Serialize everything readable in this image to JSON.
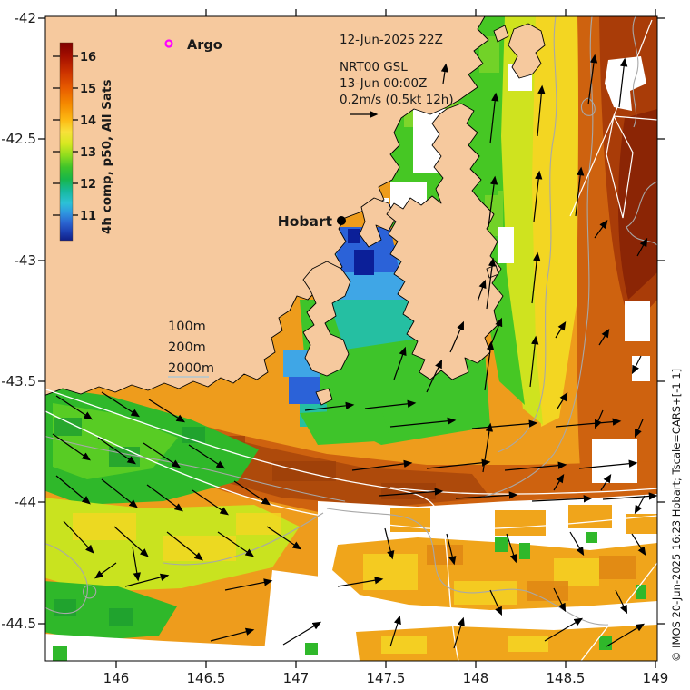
{
  "axes": {
    "x_ticks": [
      "146",
      "146.5",
      "147",
      "147.5",
      "148",
      "148.5",
      "149"
    ],
    "y_ticks": [
      "-42",
      "-42.5",
      "-43",
      "-43.5",
      "-44",
      "-44.5"
    ]
  },
  "colorbar": {
    "title": "4h comp, p50, All Sats",
    "ticks": [
      "16",
      "15",
      "14",
      "13",
      "12",
      "11"
    ]
  },
  "legend": {
    "argo_label": "Argo",
    "isobaths": [
      "100m",
      "200m",
      "2000m"
    ]
  },
  "annotations": {
    "sst_timestamp": "12-Jun-2025 22Z",
    "velocity_product": "NRT00 GSL",
    "velocity_timestamp": "13-Jun 00:00Z",
    "velocity_scale": "0.2m/s (0.5kt 12h)"
  },
  "place": {
    "hobart_label": "Hobart"
  },
  "watermark": "© IMOS 20-Jun-2025 16:23 Hobart; Tscale=CARS+[-1 1]",
  "colors": {
    "land": "#f6c99e",
    "ocean_warm": "#ee9c1c",
    "ocean_hot": "#8b2505",
    "ocean_green": "#2fb82a",
    "ocean_cold_navy": "#0b1f98",
    "no_data": "#ffffff",
    "arrow": "#000000",
    "isobath_shallow": "#ffffff",
    "isobath_deep": "#a8a8a8",
    "argo_marker": "#ff00ff"
  },
  "arrows": [
    [
      62,
      436,
      100,
      461
    ],
    [
      112,
      432,
      152,
      458
    ],
    [
      164,
      440,
      202,
      464
    ],
    [
      58,
      478,
      98,
      506
    ],
    [
      108,
      482,
      148,
      510
    ],
    [
      158,
      488,
      197,
      514
    ],
    [
      208,
      490,
      246,
      515
    ],
    [
      62,
      524,
      98,
      554
    ],
    [
      112,
      528,
      150,
      558
    ],
    [
      162,
      534,
      200,
      562
    ],
    [
      212,
      540,
      250,
      566
    ],
    [
      258,
      530,
      296,
      555
    ],
    [
      70,
      574,
      102,
      608
    ],
    [
      126,
      580,
      162,
      612
    ],
    [
      184,
      586,
      222,
      616
    ],
    [
      240,
      586,
      278,
      612
    ],
    [
      294,
      580,
      330,
      604
    ],
    [
      128,
      620,
      106,
      636
    ],
    [
      146,
      602,
      152,
      638
    ],
    [
      336,
      452,
      388,
      446
    ],
    [
      402,
      450,
      456,
      444
    ],
    [
      430,
      470,
      500,
      463
    ],
    [
      520,
      472,
      590,
      466
    ],
    [
      612,
      470,
      682,
      464
    ],
    [
      388,
      518,
      452,
      510
    ],
    [
      470,
      516,
      538,
      509
    ],
    [
      556,
      518,
      622,
      512
    ],
    [
      638,
      516,
      700,
      510
    ],
    [
      418,
      546,
      486,
      541
    ],
    [
      502,
      549,
      568,
      545
    ],
    [
      586,
      552,
      650,
      549
    ],
    [
      664,
      550,
      722,
      546
    ],
    [
      540,
      158,
      546,
      104
    ],
    [
      592,
      150,
      597,
      96
    ],
    [
      538,
      250,
      545,
      196
    ],
    [
      588,
      244,
      594,
      190
    ],
    [
      634,
      238,
      640,
      186
    ],
    [
      536,
      340,
      543,
      286
    ],
    [
      586,
      334,
      592,
      280
    ],
    [
      534,
      430,
      541,
      378
    ],
    [
      584,
      426,
      590,
      372
    ],
    [
      532,
      520,
      540,
      468
    ],
    [
      648,
      115,
      655,
      62
    ],
    [
      682,
      118,
      688,
      66
    ],
    [
      655,
      262,
      668,
      244
    ],
    [
      702,
      282,
      712,
      264
    ],
    [
      612,
      372,
      622,
      356
    ],
    [
      660,
      380,
      670,
      364
    ],
    [
      706,
      392,
      697,
      410
    ],
    [
      614,
      450,
      624,
      434
    ],
    [
      664,
      452,
      656,
      470
    ],
    [
      708,
      462,
      700,
      480
    ],
    [
      610,
      540,
      620,
      524
    ],
    [
      662,
      540,
      672,
      524
    ],
    [
      710,
      546,
      700,
      564
    ],
    [
      434,
      418,
      446,
      384
    ],
    [
      470,
      432,
      486,
      398
    ],
    [
      496,
      388,
      510,
      356
    ],
    [
      526,
      332,
      534,
      310
    ],
    [
      540,
      382,
      552,
      352
    ],
    [
      488,
      92,
      491,
      72
    ],
    [
      424,
      582,
      432,
      614
    ],
    [
      492,
      588,
      500,
      620
    ],
    [
      558,
      588,
      568,
      618
    ],
    [
      628,
      586,
      642,
      610
    ],
    [
      696,
      588,
      710,
      610
    ],
    [
      540,
      650,
      552,
      676
    ],
    [
      610,
      648,
      622,
      672
    ],
    [
      678,
      650,
      690,
      674
    ],
    [
      138,
      646,
      184,
      634
    ],
    [
      248,
      650,
      298,
      640
    ],
    [
      372,
      646,
      420,
      638
    ],
    [
      232,
      706,
      278,
      694
    ],
    [
      312,
      710,
      352,
      686
    ],
    [
      430,
      712,
      440,
      680
    ],
    [
      500,
      714,
      510,
      682
    ],
    [
      600,
      706,
      640,
      682
    ],
    [
      668,
      712,
      708,
      688
    ]
  ]
}
